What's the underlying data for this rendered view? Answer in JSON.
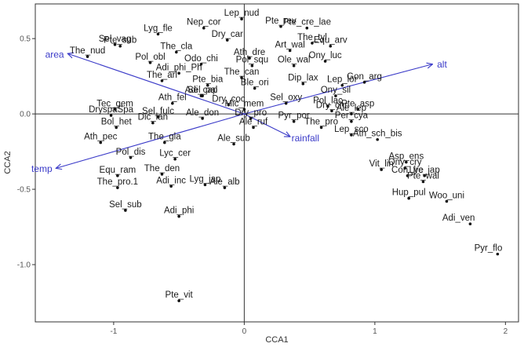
{
  "chart_data": {
    "type": "scatter",
    "xlabel": "CCA1",
    "ylabel": "CCA2",
    "xlim": [
      -1.6,
      2.1
    ],
    "ylim": [
      -1.38,
      0.73
    ],
    "x_ticks": [
      -1,
      0,
      1,
      2
    ],
    "y_ticks": [
      0.5,
      0.0,
      -0.5,
      -1.0
    ],
    "y_tick_labels": [
      "0.5",
      "0.0",
      "-0.5",
      "-1.0"
    ],
    "reference_lines": {
      "x": 0,
      "y": 0
    },
    "arrow_color": "#3a3ac8",
    "point_color": "#111111",
    "env_vectors": [
      {
        "name": "area",
        "x": -1.35,
        "y": 0.4
      },
      {
        "name": "temp",
        "x": -1.44,
        "y": -0.36
      },
      {
        "name": "rainfall",
        "x": 0.35,
        "y": -0.15
      },
      {
        "name": "alt",
        "x": 1.44,
        "y": 0.33
      }
    ],
    "species": [
      {
        "name": "Lyg_fle",
        "x": -0.66,
        "y": 0.53
      },
      {
        "name": "Nep_cor",
        "x": -0.31,
        "y": 0.57
      },
      {
        "name": "Lep_nud",
        "x": -0.02,
        "y": 0.63
      },
      {
        "name": "Pte_rev",
        "x": 0.28,
        "y": 0.58
      },
      {
        "name": "Pte_cre_lae",
        "x": 0.48,
        "y": 0.57
      },
      {
        "name": "Sel_vag",
        "x": -0.99,
        "y": 0.46
      },
      {
        "name": "Pte_sub",
        "x": -0.95,
        "y": 0.45
      },
      {
        "name": "Dry_car",
        "x": -0.13,
        "y": 0.49
      },
      {
        "name": "The_nud",
        "x": -1.2,
        "y": 0.38
      },
      {
        "name": "The_cla",
        "x": -0.52,
        "y": 0.41
      },
      {
        "name": "Ath_dre",
        "x": 0.04,
        "y": 0.37
      },
      {
        "name": "Art_wal",
        "x": 0.35,
        "y": 0.42
      },
      {
        "name": "The_tyl",
        "x": 0.52,
        "y": 0.47
      },
      {
        "name": "Equ_arv",
        "x": 0.66,
        "y": 0.45
      },
      {
        "name": "Odo_chi",
        "x": -0.33,
        "y": 0.33
      },
      {
        "name": "Pol_obl",
        "x": -0.72,
        "y": 0.34
      },
      {
        "name": "Pol_squ",
        "x": 0.06,
        "y": 0.32
      },
      {
        "name": "Ony_luc",
        "x": 0.62,
        "y": 0.35
      },
      {
        "name": "Adi_phi_Ph",
        "x": -0.5,
        "y": 0.27
      },
      {
        "name": "Ole_wal",
        "x": 0.38,
        "y": 0.32
      },
      {
        "name": "The_can",
        "x": -0.02,
        "y": 0.24
      },
      {
        "name": "Gon_arg",
        "x": 0.92,
        "y": 0.21
      },
      {
        "name": "Pte_bia",
        "x": -0.28,
        "y": 0.19
      },
      {
        "name": "Dip_lax",
        "x": 0.45,
        "y": 0.2
      },
      {
        "name": "The_arl",
        "x": -0.63,
        "y": 0.22
      },
      {
        "name": "Adi_cap",
        "x": -0.33,
        "y": 0.12
      },
      {
        "name": "Sel_pal",
        "x": -0.32,
        "y": 0.12
      },
      {
        "name": "Ble_ori",
        "x": 0.08,
        "y": 0.17
      },
      {
        "name": "Lep_lor",
        "x": 0.75,
        "y": 0.19
      },
      {
        "name": "Ony_sil",
        "x": 0.7,
        "y": 0.12
      },
      {
        "name": "Sel_oxy",
        "x": 0.32,
        "y": 0.07
      },
      {
        "name": "Pol_lac",
        "x": 0.64,
        "y": 0.05
      },
      {
        "name": "Ath_fel",
        "x": -0.55,
        "y": 0.07
      },
      {
        "name": "Dry_coc",
        "x": -0.12,
        "y": 0.06
      },
      {
        "name": "Mic_mem",
        "x": 0.0,
        "y": 0.03
      },
      {
        "name": "Tec_gem",
        "x": -0.99,
        "y": 0.03
      },
      {
        "name": "Dry_chr",
        "x": 0.67,
        "y": 0.02
      },
      {
        "name": "Pte_asp",
        "x": 0.87,
        "y": 0.03
      },
      {
        "name": "Sel_fulc",
        "x": -0.66,
        "y": -0.02
      },
      {
        "name": "Ale_don",
        "x": -0.32,
        "y": -0.03
      },
      {
        "name": "Dry_pro",
        "x": 0.05,
        "y": -0.03
      },
      {
        "name": "Pyr_por",
        "x": 0.38,
        "y": -0.05
      },
      {
        "name": "Ale_lep",
        "x": 0.82,
        "y": 0.0
      },
      {
        "name": "DryspaSpa",
        "x": -1.02,
        "y": -0.01
      },
      {
        "name": "Dic_lan",
        "x": -0.7,
        "y": -0.06
      },
      {
        "name": "Per_cya",
        "x": 0.82,
        "y": -0.05
      },
      {
        "name": "The_pro",
        "x": 0.59,
        "y": -0.09
      },
      {
        "name": "Ale_ruf",
        "x": 0.07,
        "y": -0.09
      },
      {
        "name": "Bol_het",
        "x": -0.98,
        "y": -0.09
      },
      {
        "name": "Lep_sco",
        "x": 0.82,
        "y": -0.14
      },
      {
        "name": "Ath_sch_bis",
        "x": 1.02,
        "y": -0.17
      },
      {
        "name": "The_gla",
        "x": -0.61,
        "y": -0.19
      },
      {
        "name": "Ale_sub",
        "x": -0.08,
        "y": -0.2
      },
      {
        "name": "Ath_pec",
        "x": -1.1,
        "y": -0.19
      },
      {
        "name": "Pol_dis",
        "x": -0.87,
        "y": -0.29
      },
      {
        "name": "Lyc_cer",
        "x": -0.53,
        "y": -0.3
      },
      {
        "name": "Asp_ens",
        "x": 1.24,
        "y": -0.32
      },
      {
        "name": "Ony_cry",
        "x": 1.23,
        "y": -0.36
      },
      {
        "name": "Lyc_jap",
        "x": 1.38,
        "y": -0.41
      },
      {
        "name": "Vit_lin",
        "x": 1.05,
        "y": -0.37
      },
      {
        "name": "Con_fre",
        "x": 1.25,
        "y": -0.41
      },
      {
        "name": "Pte_wal",
        "x": 1.37,
        "y": -0.45
      },
      {
        "name": "The_den",
        "x": -0.63,
        "y": -0.4
      },
      {
        "name": "Equ_ram",
        "x": -0.97,
        "y": -0.41
      },
      {
        "name": "Lyg_jap",
        "x": -0.3,
        "y": -0.47
      },
      {
        "name": "The_pro.1",
        "x": -0.97,
        "y": -0.49
      },
      {
        "name": "Adi_inc",
        "x": -0.56,
        "y": -0.48
      },
      {
        "name": "Ale_alb",
        "x": -0.15,
        "y": -0.49
      },
      {
        "name": "Hup_pul",
        "x": 1.26,
        "y": -0.56
      },
      {
        "name": "Woo_uni",
        "x": 1.55,
        "y": -0.58
      },
      {
        "name": "Sel_sub",
        "x": -0.91,
        "y": -0.64
      },
      {
        "name": "Adi_phi",
        "x": -0.5,
        "y": -0.68
      },
      {
        "name": "Adi_ven",
        "x": 1.73,
        "y": -0.73
      },
      {
        "name": "Pyr_flo",
        "x": 1.94,
        "y": -0.93
      },
      {
        "name": "Pte_vit",
        "x": -0.5,
        "y": -1.24
      }
    ]
  }
}
